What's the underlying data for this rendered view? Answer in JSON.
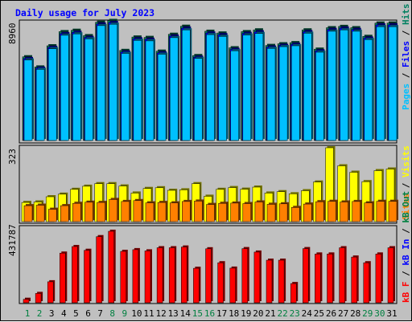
{
  "chart_data": {
    "type": "bar",
    "title": "Daily usage for July 2023",
    "categories": [
      "1",
      "2",
      "3",
      "4",
      "5",
      "6",
      "7",
      "8",
      "9",
      "10",
      "11",
      "12",
      "13",
      "14",
      "15",
      "16",
      "17",
      "18",
      "19",
      "20",
      "21",
      "22",
      "23",
      "24",
      "25",
      "26",
      "27",
      "28",
      "29",
      "30",
      "31"
    ],
    "weekend_days": [
      "1",
      "2",
      "8",
      "9",
      "15",
      "16",
      "22",
      "23",
      "29",
      "30"
    ],
    "panels": [
      {
        "name": "top",
        "ymax_label": "8960",
        "ymax": 8960
      },
      {
        "name": "middle",
        "ymax_label": "323",
        "ymax": 323
      },
      {
        "name": "bottom",
        "ymax_label": "431787",
        "ymax": 431787
      }
    ],
    "series": [
      {
        "name": "Hits",
        "panel": 0,
        "values": [
          6230,
          5470,
          7050,
          8100,
          8200,
          7800,
          8800,
          8930,
          6700,
          7700,
          7670,
          6650,
          7900,
          8500,
          6320,
          8130,
          8000,
          6900,
          8100,
          8230,
          7070,
          7200,
          7280,
          8230,
          6800,
          8390,
          8490,
          8390,
          7750,
          8740,
          8740
        ]
      },
      {
        "name": "Files",
        "panel": 0,
        "values": [
          6100,
          5380,
          6930,
          7950,
          8050,
          7670,
          8670,
          8780,
          6580,
          7570,
          7530,
          6520,
          7770,
          8360,
          6200,
          8000,
          7870,
          6780,
          7970,
          8090,
          6950,
          7080,
          7160,
          8100,
          6670,
          8260,
          8360,
          8260,
          7620,
          8600,
          8600
        ]
      },
      {
        "name": "Pages",
        "panel": 0,
        "values": [
          5990,
          5290,
          6830,
          7830,
          7930,
          7560,
          8550,
          8650,
          6480,
          7450,
          7410,
          6420,
          7650,
          8230,
          6110,
          7880,
          7740,
          6680,
          7850,
          7960,
          6850,
          6980,
          7050,
          7980,
          6570,
          8130,
          8230,
          8130,
          7510,
          8470,
          8470
        ]
      },
      {
        "name": "Visits",
        "panel": 1,
        "values": [
          84,
          86,
          109,
          120,
          141,
          155,
          166,
          166,
          156,
          125,
          145,
          148,
          137,
          139,
          166,
          111,
          141,
          149,
          142,
          151,
          125,
          131,
          122,
          135,
          173,
          323,
          244,
          216,
          175,
          223,
          230
        ]
      },
      {
        "name": "Sites",
        "panel": 1,
        "values": [
          70,
          72,
          54,
          70,
          80,
          85,
          84,
          97,
          88,
          92,
          82,
          84,
          82,
          88,
          90,
          75,
          80,
          81,
          79,
          86,
          76,
          78,
          62,
          77,
          87,
          89,
          86,
          88,
          82,
          89,
          89
        ]
      },
      {
        "name": "KB F",
        "panel": 2,
        "values": [
          20000,
          54000,
          121000,
          287000,
          325000,
          303000,
          382000,
          413000,
          297000,
          307000,
          300000,
          318000,
          318000,
          322000,
          199000,
          312000,
          231000,
          200000,
          313000,
          293000,
          246000,
          246000,
          111000,
          313000,
          282000,
          282000,
          318000,
          264000,
          231000,
          282000,
          318000
        ]
      }
    ],
    "series_colors": {
      "Hits": "#00805c",
      "Files": "#0000ff",
      "Pages": "#00c0ff",
      "Visits": "#ffff00",
      "Sites": "#ff8000",
      "KB F": "#ff0000"
    },
    "legend_top": [
      "Pages",
      "Files",
      "Hits"
    ],
    "legend_middle": [
      "Sites",
      "Visits"
    ],
    "legend_bottom": [
      "kB F",
      "kB In",
      "kB Out"
    ],
    "legend_sep": " / ",
    "day_label_colors": {
      "weekday": "#000000",
      "weekend": "#008040"
    }
  }
}
